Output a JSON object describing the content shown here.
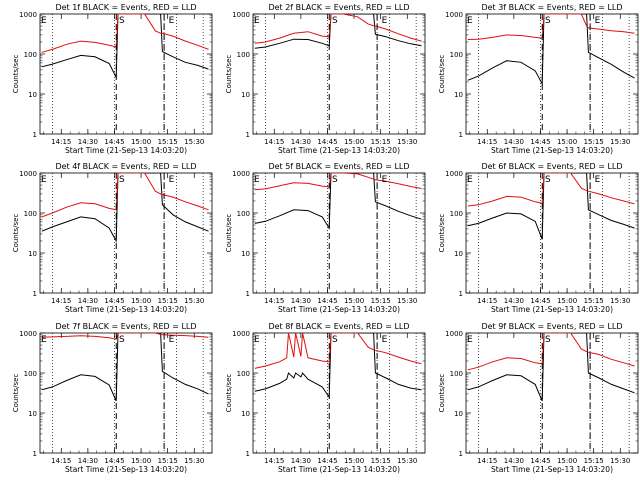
{
  "figure": {
    "xlabel": "Start Time (21-Sep-13 14:03:20)",
    "ylabel": "Counts/sec",
    "colors": {
      "events": "#000000",
      "lld": "#e01010"
    }
  },
  "chart_data": [
    {
      "type": "line",
      "title": "Det 1f BLACK = Events, RED = LLD",
      "xlabel": "Start Time (21-Sep-13 14:03:20)",
      "ylabel": "Counts/sec",
      "yscale": "log",
      "ylim": [
        1,
        1000
      ],
      "xticks": [
        "14:15",
        "14:30",
        "14:45",
        "15:00",
        "15:15",
        "15:30"
      ],
      "yticks": [
        "1",
        "10",
        "100",
        "1000"
      ],
      "markers": [
        "E",
        "S",
        "E"
      ],
      "series": [
        {
          "role": "events",
          "color": "#000000",
          "x": [
            "14:04",
            "14:10",
            "14:18",
            "14:26",
            "14:34",
            "14:42",
            "14:46",
            "14:47",
            "14:54",
            "15:02",
            "15:08",
            "15:11",
            "15:12",
            "15:18",
            "15:25",
            "15:32",
            "15:38"
          ],
          "y": [
            48,
            56,
            72,
            92,
            85,
            58,
            26,
            1000,
            1000,
            1000,
            1000,
            1000,
            115,
            85,
            62,
            52,
            42
          ]
        },
        {
          "role": "lld",
          "color": "#e01010",
          "x": [
            "14:04",
            "14:10",
            "14:18",
            "14:26",
            "14:34",
            "14:42",
            "14:46",
            "14:47",
            "14:54",
            "15:02",
            "15:08",
            "15:11",
            "15:12",
            "15:18",
            "15:25",
            "15:32",
            "15:38"
          ],
          "y": [
            110,
            130,
            175,
            210,
            195,
            165,
            150,
            1000,
            1000,
            1000,
            380,
            330,
            330,
            280,
            210,
            165,
            130
          ]
        }
      ]
    },
    {
      "type": "line",
      "title": "Det 2f BLACK = Events, RED = LLD",
      "xlabel": "Start Time (21-Sep-13 14:03:20)",
      "ylabel": "Counts/sec",
      "yscale": "log",
      "ylim": [
        1,
        1000
      ],
      "xticks": [
        "14:15",
        "14:30",
        "14:45",
        "15:00",
        "15:15",
        "15:30"
      ],
      "yticks": [
        "1",
        "10",
        "100",
        "1000"
      ],
      "markers": [
        "E",
        "S",
        "E"
      ],
      "series": [
        {
          "role": "events",
          "color": "#000000",
          "x": [
            "14:04",
            "14:10",
            "14:18",
            "14:26",
            "14:34",
            "14:42",
            "14:46",
            "14:47",
            "14:54",
            "15:02",
            "15:08",
            "15:11",
            "15:12",
            "15:18",
            "15:25",
            "15:32",
            "15:38"
          ],
          "y": [
            140,
            150,
            185,
            235,
            230,
            185,
            160,
            1000,
            1000,
            1000,
            1000,
            1000,
            310,
            270,
            215,
            180,
            160
          ]
        },
        {
          "role": "lld",
          "color": "#e01010",
          "x": [
            "14:04",
            "14:10",
            "14:18",
            "14:26",
            "14:34",
            "14:42",
            "14:46",
            "14:47",
            "14:54",
            "15:02",
            "15:08",
            "15:11",
            "15:12",
            "15:18",
            "15:25",
            "15:32",
            "15:38"
          ],
          "y": [
            185,
            200,
            250,
            330,
            360,
            280,
            270,
            1000,
            1000,
            850,
            560,
            510,
            500,
            420,
            320,
            250,
            210
          ]
        }
      ]
    },
    {
      "type": "line",
      "title": "Det 3f BLACK = Events, RED = LLD",
      "xlabel": "Start Time (21-Sep-13 14:03:20)",
      "ylabel": "Counts/sec",
      "yscale": "log",
      "ylim": [
        1,
        1000
      ],
      "xticks": [
        "14:15",
        "14:30",
        "14:45",
        "15:00",
        "15:15",
        "15:30"
      ],
      "yticks": [
        "1",
        "10",
        "100",
        "1000"
      ],
      "markers": [
        "E",
        "S",
        "E"
      ],
      "series": [
        {
          "role": "events",
          "color": "#000000",
          "x": [
            "14:04",
            "14:10",
            "14:18",
            "14:26",
            "14:34",
            "14:42",
            "14:46",
            "14:47",
            "14:54",
            "15:02",
            "15:08",
            "15:11",
            "15:12",
            "15:18",
            "15:25",
            "15:32",
            "15:38"
          ],
          "y": [
            22,
            28,
            45,
            68,
            62,
            38,
            18,
            1000,
            1000,
            1000,
            1000,
            1000,
            110,
            80,
            55,
            35,
            25
          ]
        },
        {
          "role": "lld",
          "color": "#e01010",
          "x": [
            "14:04",
            "14:10",
            "14:18",
            "14:26",
            "14:34",
            "14:42",
            "14:46",
            "14:47",
            "14:54",
            "15:02",
            "15:08",
            "15:11",
            "15:12",
            "15:18",
            "15:25",
            "15:32",
            "15:38"
          ],
          "y": [
            230,
            235,
            260,
            300,
            290,
            260,
            250,
            1000,
            1000,
            1000,
            1000,
            500,
            450,
            420,
            380,
            360,
            330
          ]
        }
      ]
    },
    {
      "type": "line",
      "title": "Det 4f BLACK = Events, RED = LLD",
      "xlabel": "Start Time (21-Sep-13 14:03:20)",
      "ylabel": "Counts/sec",
      "yscale": "log",
      "ylim": [
        1,
        1000
      ],
      "xticks": [
        "14:15",
        "14:30",
        "14:45",
        "15:00",
        "15:15",
        "15:30"
      ],
      "yticks": [
        "1",
        "10",
        "100",
        "1000"
      ],
      "markers": [
        "E",
        "S",
        "E"
      ],
      "series": [
        {
          "role": "events",
          "color": "#000000",
          "x": [
            "14:04",
            "14:10",
            "14:18",
            "14:26",
            "14:34",
            "14:42",
            "14:46",
            "14:47",
            "14:54",
            "15:02",
            "15:08",
            "15:11",
            "15:12",
            "15:18",
            "15:25",
            "15:32",
            "15:38"
          ],
          "y": [
            35,
            45,
            60,
            80,
            72,
            42,
            20,
            1000,
            1000,
            1000,
            1000,
            1000,
            160,
            90,
            60,
            45,
            35
          ]
        },
        {
          "role": "lld",
          "color": "#e01010",
          "x": [
            "14:04",
            "14:10",
            "14:18",
            "14:26",
            "14:34",
            "14:42",
            "14:46",
            "14:47",
            "14:54",
            "15:02",
            "15:08",
            "15:11",
            "15:12",
            "15:18",
            "15:25",
            "15:32",
            "15:38"
          ],
          "y": [
            80,
            100,
            140,
            180,
            170,
            130,
            120,
            1000,
            1000,
            1000,
            350,
            300,
            290,
            250,
            190,
            150,
            120
          ]
        }
      ]
    },
    {
      "type": "line",
      "title": "Det 5f BLACK = Events, RED = LLD",
      "xlabel": "Start Time (21-Sep-13 14:03:20)",
      "ylabel": "Counts/sec",
      "yscale": "log",
      "ylim": [
        1,
        1000
      ],
      "xticks": [
        "14:15",
        "14:30",
        "14:45",
        "15:00",
        "15:15",
        "15:30"
      ],
      "yticks": [
        "1",
        "10",
        "100",
        "1000"
      ],
      "markers": [
        "E",
        "S",
        "E"
      ],
      "series": [
        {
          "role": "events",
          "color": "#000000",
          "x": [
            "14:04",
            "14:10",
            "14:18",
            "14:26",
            "14:34",
            "14:42",
            "14:46",
            "14:47",
            "14:54",
            "15:02",
            "15:08",
            "15:11",
            "15:12",
            "15:18",
            "15:25",
            "15:32",
            "15:38"
          ],
          "y": [
            55,
            62,
            85,
            120,
            115,
            80,
            42,
            1000,
            1000,
            1000,
            1000,
            1000,
            190,
            150,
            110,
            85,
            70
          ]
        },
        {
          "role": "lld",
          "color": "#e01010",
          "x": [
            "14:04",
            "14:10",
            "14:18",
            "14:26",
            "14:34",
            "14:42",
            "14:46",
            "14:47",
            "14:54",
            "15:02",
            "15:08",
            "15:11",
            "15:12",
            "15:18",
            "15:25",
            "15:32",
            "15:38"
          ],
          "y": [
            380,
            400,
            480,
            570,
            550,
            470,
            450,
            1000,
            1000,
            950,
            780,
            700,
            680,
            620,
            540,
            460,
            410
          ]
        }
      ]
    },
    {
      "type": "line",
      "title": "Det 6f BLACK = Events, RED = LLD",
      "xlabel": "Start Time (21-Sep-13 14:03:20)",
      "ylabel": "Counts/sec",
      "yscale": "log",
      "ylim": [
        1,
        1000
      ],
      "xticks": [
        "14:15",
        "14:30",
        "14:45",
        "15:00",
        "15:15",
        "15:30"
      ],
      "yticks": [
        "1",
        "10",
        "100",
        "1000"
      ],
      "markers": [
        "E",
        "S",
        "E"
      ],
      "series": [
        {
          "role": "events",
          "color": "#000000",
          "x": [
            "14:04",
            "14:10",
            "14:18",
            "14:26",
            "14:34",
            "14:42",
            "14:46",
            "14:47",
            "14:54",
            "15:02",
            "15:08",
            "15:11",
            "15:12",
            "15:18",
            "15:25",
            "15:32",
            "15:38"
          ],
          "y": [
            48,
            55,
            75,
            100,
            95,
            62,
            22,
            1000,
            1000,
            1000,
            1000,
            1000,
            120,
            90,
            65,
            52,
            42
          ]
        },
        {
          "role": "lld",
          "color": "#e01010",
          "x": [
            "14:04",
            "14:10",
            "14:18",
            "14:26",
            "14:34",
            "14:42",
            "14:46",
            "14:47",
            "14:54",
            "15:02",
            "15:08",
            "15:11",
            "15:12",
            "15:18",
            "15:25",
            "15:32",
            "15:38"
          ],
          "y": [
            150,
            160,
            200,
            260,
            250,
            190,
            175,
            1000,
            1000,
            1000,
            420,
            360,
            350,
            300,
            240,
            200,
            170
          ]
        }
      ]
    },
    {
      "type": "line",
      "title": "Det 7f BLACK = Events, RED = LLD",
      "xlabel": "Start Time (21-Sep-13 14:03:20)",
      "ylabel": "Counts/sec",
      "yscale": "log",
      "ylim": [
        1,
        1000
      ],
      "xticks": [
        "14:15",
        "14:30",
        "14:45",
        "15:00",
        "15:15",
        "15:30"
      ],
      "yticks": [
        "1",
        "10",
        "100",
        "1000"
      ],
      "markers": [
        "E",
        "S",
        "E"
      ],
      "series": [
        {
          "role": "events",
          "color": "#000000",
          "x": [
            "14:04",
            "14:10",
            "14:18",
            "14:26",
            "14:34",
            "14:42",
            "14:46",
            "14:47",
            "14:54",
            "15:02",
            "15:08",
            "15:11",
            "15:12",
            "15:18",
            "15:25",
            "15:32",
            "15:38"
          ],
          "y": [
            38,
            45,
            65,
            90,
            82,
            50,
            20,
            1000,
            1000,
            1000,
            1000,
            1000,
            110,
            75,
            52,
            40,
            30
          ]
        },
        {
          "role": "lld",
          "color": "#e01010",
          "x": [
            "14:04",
            "14:10",
            "14:18",
            "14:26",
            "14:34",
            "14:42",
            "14:46",
            "14:47",
            "14:54",
            "15:02",
            "15:08",
            "15:11",
            "15:12",
            "15:18",
            "15:25",
            "15:32",
            "15:38"
          ],
          "y": [
            780,
            800,
            820,
            850,
            820,
            760,
            700,
            1000,
            1000,
            1000,
            1000,
            920,
            900,
            880,
            860,
            820,
            780
          ]
        }
      ]
    },
    {
      "type": "line",
      "title": "Det 8f BLACK = Events, RED = LLD",
      "xlabel": "Start Time (21-Sep-13 14:03:20)",
      "ylabel": "Counts/sec",
      "yscale": "log",
      "ylim": [
        1,
        1000
      ],
      "xticks": [
        "14:15",
        "14:30",
        "14:45",
        "15:00",
        "15:15",
        "15:30"
      ],
      "yticks": [
        "1",
        "10",
        "100",
        "1000"
      ],
      "markers": [
        "E",
        "S",
        "E"
      ],
      "series": [
        {
          "role": "events",
          "color": "#000000",
          "x": [
            "14:04",
            "14:10",
            "14:18",
            "14:22",
            "14:23",
            "14:26",
            "14:27",
            "14:30",
            "14:31",
            "14:34",
            "14:42",
            "14:46",
            "14:47",
            "14:54",
            "15:02",
            "15:08",
            "15:11",
            "15:12",
            "15:18",
            "15:25",
            "15:32",
            "15:38"
          ],
          "y": [
            35,
            40,
            55,
            70,
            100,
            75,
            100,
            80,
            100,
            70,
            45,
            25,
            1000,
            1000,
            1000,
            1000,
            1000,
            100,
            75,
            52,
            42,
            38
          ]
        },
        {
          "role": "lld",
          "color": "#e01010",
          "x": [
            "14:04",
            "14:10",
            "14:18",
            "14:22",
            "14:23",
            "14:26",
            "14:27",
            "14:30",
            "14:31",
            "14:34",
            "14:42",
            "14:46",
            "14:47",
            "14:54",
            "15:02",
            "15:08",
            "15:11",
            "15:12",
            "15:18",
            "15:25",
            "15:32",
            "15:38"
          ],
          "y": [
            130,
            150,
            190,
            240,
            1000,
            250,
            1000,
            260,
            1000,
            240,
            200,
            190,
            1000,
            1000,
            1000,
            440,
            380,
            370,
            320,
            250,
            200,
            170
          ]
        }
      ]
    },
    {
      "type": "line",
      "title": "Det 9f BLACK = Events, RED = LLD",
      "xlabel": "Start Time (21-Sep-13 14:03:20)",
      "ylabel": "Counts/sec",
      "yscale": "log",
      "ylim": [
        1,
        1000
      ],
      "xticks": [
        "14:15",
        "14:30",
        "14:45",
        "15:00",
        "15:15",
        "15:30"
      ],
      "yticks": [
        "1",
        "10",
        "100",
        "1000"
      ],
      "markers": [
        "E",
        "S",
        "E"
      ],
      "series": [
        {
          "role": "events",
          "color": "#000000",
          "x": [
            "14:04",
            "14:10",
            "14:18",
            "14:26",
            "14:34",
            "14:42",
            "14:46",
            "14:47",
            "14:54",
            "15:02",
            "15:08",
            "15:11",
            "15:12",
            "15:18",
            "15:25",
            "15:32",
            "15:38"
          ],
          "y": [
            38,
            45,
            65,
            90,
            85,
            52,
            20,
            1000,
            1000,
            1000,
            1000,
            1000,
            100,
            75,
            52,
            40,
            32
          ]
        },
        {
          "role": "lld",
          "color": "#e01010",
          "x": [
            "14:04",
            "14:10",
            "14:18",
            "14:26",
            "14:34",
            "14:42",
            "14:46",
            "14:47",
            "14:54",
            "15:02",
            "15:08",
            "15:11",
            "15:12",
            "15:18",
            "15:25",
            "15:32",
            "15:38"
          ],
          "y": [
            120,
            140,
            190,
            240,
            230,
            180,
            170,
            1000,
            1000,
            1000,
            400,
            340,
            330,
            290,
            220,
            180,
            150
          ]
        }
      ]
    }
  ]
}
